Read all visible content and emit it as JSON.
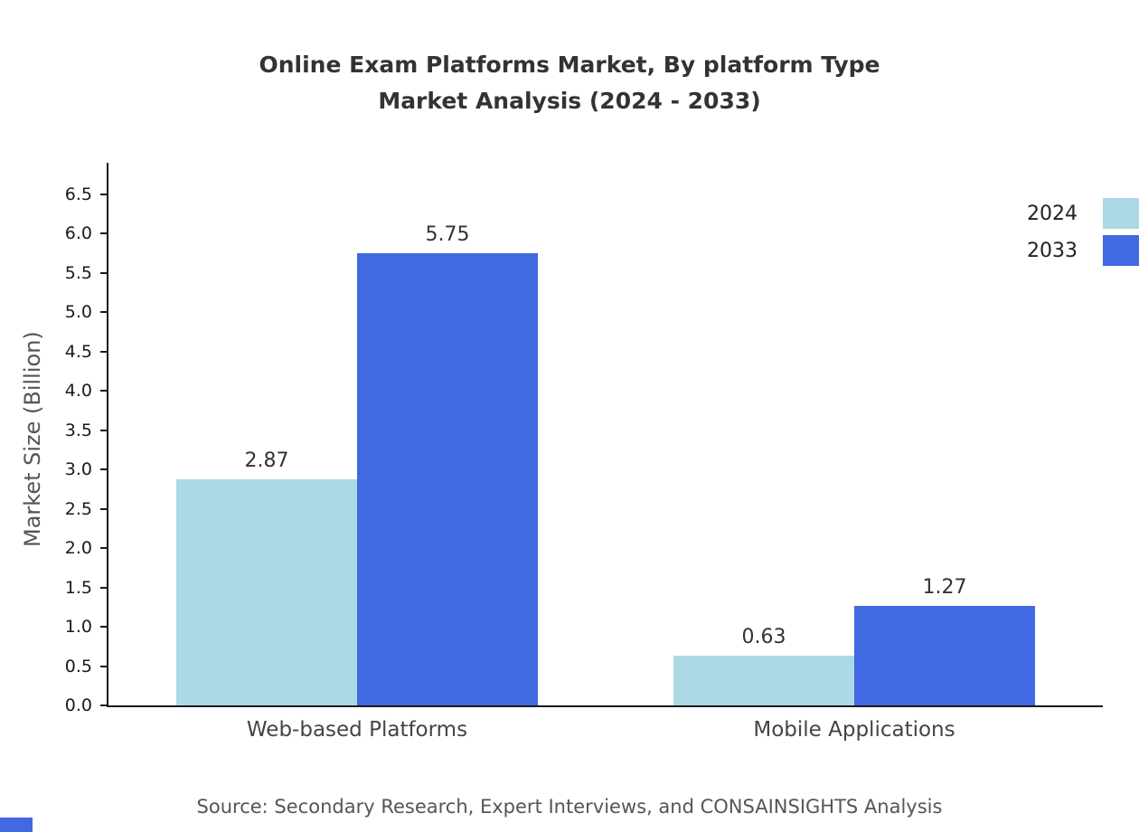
{
  "title": {
    "line1": "Online Exam Platforms Market, By platform Type",
    "line2": "Market Analysis (2024 - 2033)"
  },
  "source": "Source: Secondary Research, Expert Interviews, and CONSAINSIGHTS Analysis",
  "chart_data": {
    "type": "bar",
    "title": "Online Exam Platforms Market, By platform Type — Market Analysis (2024 - 2033)",
    "categories": [
      "Web-based Platforms",
      "Mobile Applications"
    ],
    "series": [
      {
        "name": "2024",
        "color": "#ADD8E6",
        "values": [
          2.87,
          0.63
        ]
      },
      {
        "name": "2033",
        "color": "#4169E1",
        "values": [
          5.75,
          1.27
        ]
      }
    ],
    "xlabel": "",
    "ylabel": "Market Size (Billion)",
    "ylim": [
      0,
      6.5
    ],
    "yticks": [
      0.0,
      0.5,
      1.0,
      1.5,
      2.0,
      2.5,
      3.0,
      3.5,
      4.0,
      4.5,
      5.0,
      5.5,
      6.0,
      6.5
    ],
    "grid": false,
    "legend_position": "top-right",
    "value_labels": true,
    "bar_value_labels": [
      "2.87",
      "5.75",
      "0.63",
      "1.27"
    ]
  }
}
